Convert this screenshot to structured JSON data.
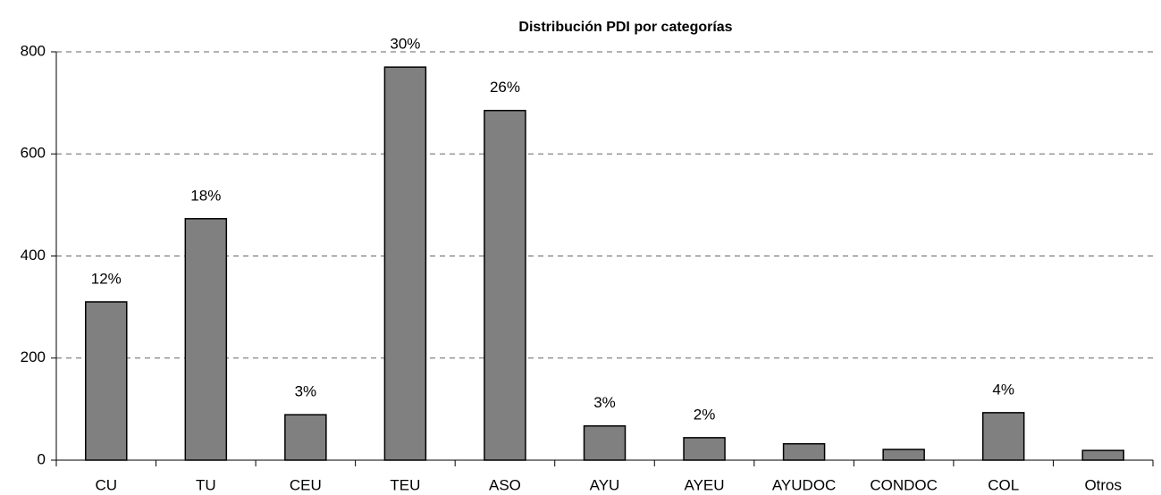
{
  "chart_data": {
    "type": "bar",
    "title": "Distribución PDI por categorías",
    "categories": [
      "CU",
      "TU",
      "CEU",
      "TEU",
      "ASO",
      "AYU",
      "AYEU",
      "AYUDOC",
      "CONDOC",
      "COL",
      "Otros"
    ],
    "values": [
      310,
      473,
      89,
      770,
      685,
      67,
      44,
      32,
      21,
      93,
      19
    ],
    "share_labels": [
      "12%",
      "18%",
      "3%",
      "30%",
      "26%",
      "3%",
      "2%",
      null,
      null,
      "4%",
      null
    ],
    "color": "#808080",
    "ylim": [
      0,
      800
    ],
    "yticks": [
      0,
      200,
      400,
      600,
      800
    ],
    "grid": true
  }
}
